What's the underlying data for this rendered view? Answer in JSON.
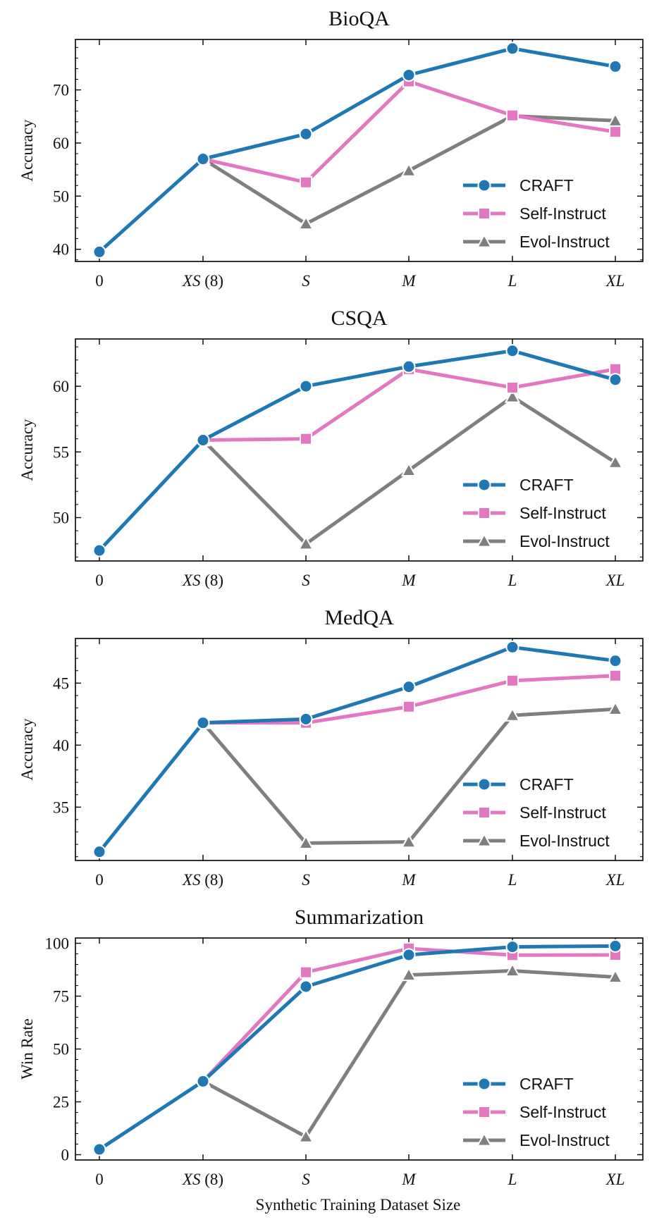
{
  "figure": {
    "xlabel": "Synthetic Training Dataset Size"
  },
  "chart_data": [
    {
      "type": "line",
      "title": "BioQA",
      "ylabel": "Accuracy",
      "categories": [
        {
          "main": "0",
          "suffix": ""
        },
        {
          "main": "XS",
          "suffix": " (8)"
        },
        {
          "main": "S",
          "suffix": ""
        },
        {
          "main": "M",
          "suffix": ""
        },
        {
          "main": "L",
          "suffix": ""
        },
        {
          "main": "XL",
          "suffix": ""
        }
      ],
      "ylim": [
        37.7,
        79.5
      ],
      "yticks": [
        40,
        50,
        60,
        70
      ],
      "series": [
        {
          "name": "CRAFT",
          "color": "#1f77b4",
          "marker": "circle",
          "values": [
            39.5,
            57.0,
            61.7,
            72.8,
            77.8,
            74.4
          ]
        },
        {
          "name": "Self-Instruct",
          "color": "#e377c2",
          "marker": "square",
          "values": [
            null,
            57.0,
            52.6,
            71.6,
            65.2,
            62.1
          ]
        },
        {
          "name": "Evol-Instruct",
          "color": "#7f7f7f",
          "marker": "triangle",
          "values": [
            null,
            57.0,
            44.8,
            54.8,
            65.1,
            64.2
          ]
        }
      ],
      "legend": "lower-right"
    },
    {
      "type": "line",
      "title": "CSQA",
      "ylabel": "Accuracy",
      "categories": [
        {
          "main": "0",
          "suffix": ""
        },
        {
          "main": "XS",
          "suffix": " (8)"
        },
        {
          "main": "S",
          "suffix": ""
        },
        {
          "main": "M",
          "suffix": ""
        },
        {
          "main": "L",
          "suffix": ""
        },
        {
          "main": "XL",
          "suffix": ""
        }
      ],
      "ylim": [
        46.7,
        63.6
      ],
      "yticks": [
        50,
        55,
        60
      ],
      "series": [
        {
          "name": "CRAFT",
          "color": "#1f77b4",
          "marker": "circle",
          "values": [
            47.5,
            55.9,
            60.0,
            61.5,
            62.7,
            60.5
          ]
        },
        {
          "name": "Self-Instruct",
          "color": "#e377c2",
          "marker": "square",
          "values": [
            null,
            55.9,
            56.0,
            61.3,
            59.9,
            61.3
          ]
        },
        {
          "name": "Evol-Instruct",
          "color": "#7f7f7f",
          "marker": "triangle",
          "values": [
            null,
            55.9,
            48.0,
            53.6,
            59.2,
            54.2
          ]
        }
      ],
      "legend": "lower-right"
    },
    {
      "type": "line",
      "title": "MedQA",
      "ylabel": "Accuracy",
      "categories": [
        {
          "main": "0",
          "suffix": ""
        },
        {
          "main": "XS",
          "suffix": " (8)"
        },
        {
          "main": "S",
          "suffix": ""
        },
        {
          "main": "M",
          "suffix": ""
        },
        {
          "main": "L",
          "suffix": ""
        },
        {
          "main": "XL",
          "suffix": ""
        }
      ],
      "ylim": [
        30.7,
        48.6
      ],
      "yticks": [
        35,
        40,
        45
      ],
      "series": [
        {
          "name": "CRAFT",
          "color": "#1f77b4",
          "marker": "circle",
          "values": [
            31.4,
            41.8,
            42.1,
            44.7,
            47.9,
            46.8
          ]
        },
        {
          "name": "Self-Instruct",
          "color": "#e377c2",
          "marker": "square",
          "values": [
            null,
            41.8,
            41.8,
            43.1,
            45.2,
            45.6
          ]
        },
        {
          "name": "Evol-Instruct",
          "color": "#7f7f7f",
          "marker": "triangle",
          "values": [
            null,
            41.8,
            32.1,
            32.2,
            42.4,
            42.9
          ]
        }
      ],
      "legend": "lower-right"
    },
    {
      "type": "line",
      "title": "Summarization",
      "ylabel": "Win Rate",
      "categories": [
        {
          "main": "0",
          "suffix": ""
        },
        {
          "main": "XS",
          "suffix": " (8)"
        },
        {
          "main": "S",
          "suffix": ""
        },
        {
          "main": "M",
          "suffix": ""
        },
        {
          "main": "L",
          "suffix": ""
        },
        {
          "main": "XL",
          "suffix": ""
        }
      ],
      "ylim": [
        -2.5,
        102.5
      ],
      "yticks": [
        0,
        25,
        50,
        75,
        100
      ],
      "series": [
        {
          "name": "CRAFT",
          "color": "#1f77b4",
          "marker": "circle",
          "values": [
            2.5,
            34.7,
            79.5,
            94.5,
            98.3,
            98.7
          ]
        },
        {
          "name": "Self-Instruct",
          "color": "#e377c2",
          "marker": "square",
          "values": [
            null,
            34.7,
            86.3,
            97.5,
            94.4,
            94.5
          ]
        },
        {
          "name": "Evol-Instruct",
          "color": "#7f7f7f",
          "marker": "triangle",
          "values": [
            null,
            34.7,
            8.5,
            85.0,
            87.0,
            84.0
          ]
        }
      ],
      "legend": "lower-right"
    }
  ]
}
